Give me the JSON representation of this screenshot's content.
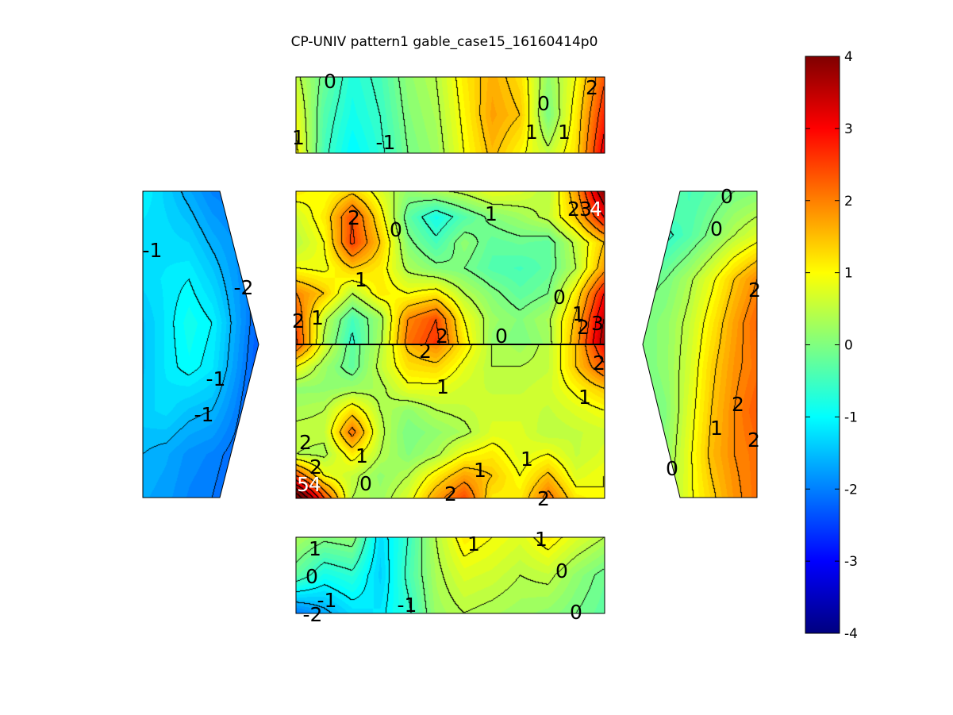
{
  "chart_data": {
    "type": "heatmap",
    "title": "CP-UNIV pattern1 gable_case15_16160414p0",
    "xlabel": "",
    "ylabel": "",
    "colormap": "jet",
    "grid": false,
    "legend": "colorbar-right",
    "colorbar": {
      "range": [
        -4,
        4
      ],
      "ticks": [
        "4",
        "3",
        "2",
        "1",
        "0",
        "-1",
        "-2",
        "-3",
        "-4"
      ]
    },
    "panels": [
      {
        "name": "top",
        "grid": [
          [
            0.6,
            -0.1,
            -0.7,
            -0.4,
            0.2,
            0.5,
            1.2,
            1.7,
            1.3,
            0.2,
            1.0,
            2.4
          ],
          [
            0.9,
            -0.3,
            -0.8,
            -0.5,
            0.1,
            0.4,
            1.1,
            1.8,
            1.5,
            0.0,
            1.2,
            2.8
          ],
          [
            1.1,
            -0.4,
            -1.0,
            -0.6,
            0.0,
            0.3,
            1.0,
            1.6,
            1.1,
            0.6,
            1.3,
            3.2
          ]
        ],
        "contour_labels": [
          "0",
          "2",
          "0",
          "1",
          "1",
          "1",
          "-1"
        ]
      },
      {
        "name": "center-upper",
        "grid": [
          [
            1.2,
            1.0,
            1.4,
            0.8,
            0.2,
            0.4,
            0.6,
            0.9,
            0.8,
            0.5,
            1.8,
            4.0
          ],
          [
            0.7,
            1.2,
            2.5,
            1.2,
            -0.2,
            -0.8,
            -0.3,
            0.1,
            0.3,
            0.6,
            1.5,
            3.0
          ],
          [
            0.5,
            1.0,
            2.6,
            1.5,
            0.1,
            -0.4,
            0.2,
            -0.2,
            -0.1,
            -0.2,
            0.6,
            1.5
          ],
          [
            1.0,
            0.9,
            1.5,
            1.2,
            0.4,
            0.1,
            0.0,
            -0.3,
            -0.4,
            -0.2,
            0.5,
            1.8
          ],
          [
            2.0,
            1.5,
            0.5,
            1.2,
            1.0,
            1.2,
            0.5,
            0.1,
            -0.2,
            0.0,
            1.2,
            3.0
          ],
          [
            2.4,
            0.6,
            -0.4,
            0.3,
            2.0,
            2.5,
            1.0,
            0.3,
            0.1,
            0.4,
            1.6,
            3.5
          ],
          [
            2.6,
            0.4,
            -0.6,
            0.4,
            2.2,
            2.7,
            1.2,
            0.2,
            0.0,
            0.3,
            1.8,
            3.8
          ]
        ],
        "contour_labels": [
          "2",
          "0",
          "1",
          "2",
          "3",
          "4",
          "1",
          "0",
          "2",
          "1",
          "1",
          "2",
          "3",
          "2",
          "2",
          "0"
        ]
      },
      {
        "name": "center-lower",
        "grid": [
          [
            2.4,
            0.8,
            -0.2,
            0.5,
            1.6,
            2.0,
            1.2,
            0.5,
            0.3,
            0.6,
            1.5,
            3.0
          ],
          [
            1.0,
            0.3,
            -0.2,
            0.6,
            1.3,
            1.4,
            0.9,
            0.5,
            0.5,
            0.6,
            1.5,
            2.4
          ],
          [
            0.2,
            0.2,
            0.3,
            0.4,
            0.9,
            0.9,
            0.7,
            0.6,
            0.6,
            0.7,
            1.1,
            1.5
          ],
          [
            0.4,
            0.5,
            1.3,
            0.5,
            0.2,
            0.5,
            0.6,
            0.7,
            0.7,
            0.6,
            0.8,
            1.0
          ],
          [
            0.6,
            0.6,
            2.2,
            0.6,
            0.0,
            0.2,
            0.4,
            0.8,
            0.8,
            0.5,
            0.6,
            0.7
          ],
          [
            0.5,
            0.4,
            1.2,
            0.5,
            0.1,
            0.4,
            1.0,
            1.2,
            0.8,
            1.0,
            0.6,
            0.8
          ],
          [
            2.5,
            1.0,
            0.6,
            0.2,
            0.5,
            1.2,
            1.8,
            1.5,
            1.0,
            1.6,
            0.8,
            1.0
          ],
          [
            5.0,
            2.5,
            0.5,
            0.3,
            0.8,
            1.8,
            2.5,
            1.2,
            1.2,
            2.2,
            1.2,
            1.0
          ]
        ],
        "contour_labels": [
          "2",
          "1",
          "1",
          "2",
          "0",
          "1",
          "1",
          "1",
          "5",
          "4",
          "2",
          "0",
          "2",
          "2",
          "1"
        ]
      },
      {
        "name": "bottom",
        "grid": [
          [
            0.4,
            0.1,
            0.2,
            -1.2,
            -0.5,
            0.5,
            1.2,
            1.0,
            0.8,
            1.2,
            0.8,
            0.5
          ],
          [
            -0.2,
            -0.8,
            -0.6,
            -1.3,
            -0.4,
            0.4,
            0.8,
            0.7,
            0.5,
            0.6,
            0.2,
            -0.1
          ],
          [
            -2.0,
            -1.6,
            -1.2,
            -1.1,
            -0.6,
            0.3,
            0.5,
            0.4,
            0.3,
            0.2,
            0.0,
            -0.2
          ]
        ],
        "contour_labels": [
          "1",
          "1",
          "1",
          "0",
          "0",
          "-1",
          "-1",
          "-2",
          "0"
        ]
      },
      {
        "name": "left",
        "grid": [
          [
            -1.0,
            -1.3,
            -1.6,
            -1.9,
            -2.0,
            -2.2
          ],
          [
            -1.2,
            -1.2,
            -1.3,
            -1.6,
            -1.8,
            -2.1
          ],
          [
            -1.2,
            -1.1,
            -1.0,
            -1.3,
            -1.7,
            -2.1
          ],
          [
            -1.4,
            -1.1,
            -0.8,
            -1.0,
            -1.6,
            -2.2
          ],
          [
            -1.4,
            -1.1,
            -0.9,
            -1.1,
            -1.7,
            -2.3
          ],
          [
            -1.3,
            -1.2,
            -1.4,
            -1.5,
            -1.9,
            -2.4
          ],
          [
            -1.5,
            -1.6,
            -1.8,
            -1.9,
            -2.1,
            -2.4
          ],
          [
            -1.6,
            -1.7,
            -1.9,
            -2.0,
            -2.2,
            -2.5
          ]
        ],
        "contour_labels": [
          "-1",
          "-2",
          "-1",
          "-1"
        ]
      },
      {
        "name": "right",
        "grid": [
          [
            0.2,
            0.0,
            -0.4,
            -0.2,
            0.0,
            0.1
          ],
          [
            -0.3,
            -0.6,
            -0.3,
            0.1,
            0.5,
            0.8
          ],
          [
            -0.1,
            0.0,
            0.4,
            0.9,
            1.5,
            2.0
          ],
          [
            0.0,
            0.2,
            0.6,
            1.2,
            1.8,
            2.3
          ],
          [
            0.0,
            0.2,
            0.7,
            1.4,
            1.9,
            2.2
          ],
          [
            -0.1,
            0.1,
            0.8,
            1.5,
            2.0,
            2.4
          ],
          [
            -0.2,
            0.2,
            0.9,
            1.6,
            2.0,
            2.2
          ],
          [
            -0.3,
            0.3,
            0.9,
            1.4,
            1.9,
            2.2
          ]
        ],
        "contour_labels": [
          "0",
          "0",
          "2",
          "2",
          "1",
          "2",
          "0"
        ]
      }
    ]
  },
  "colors": {
    "outline": "#000000",
    "background": "#ffffff"
  }
}
